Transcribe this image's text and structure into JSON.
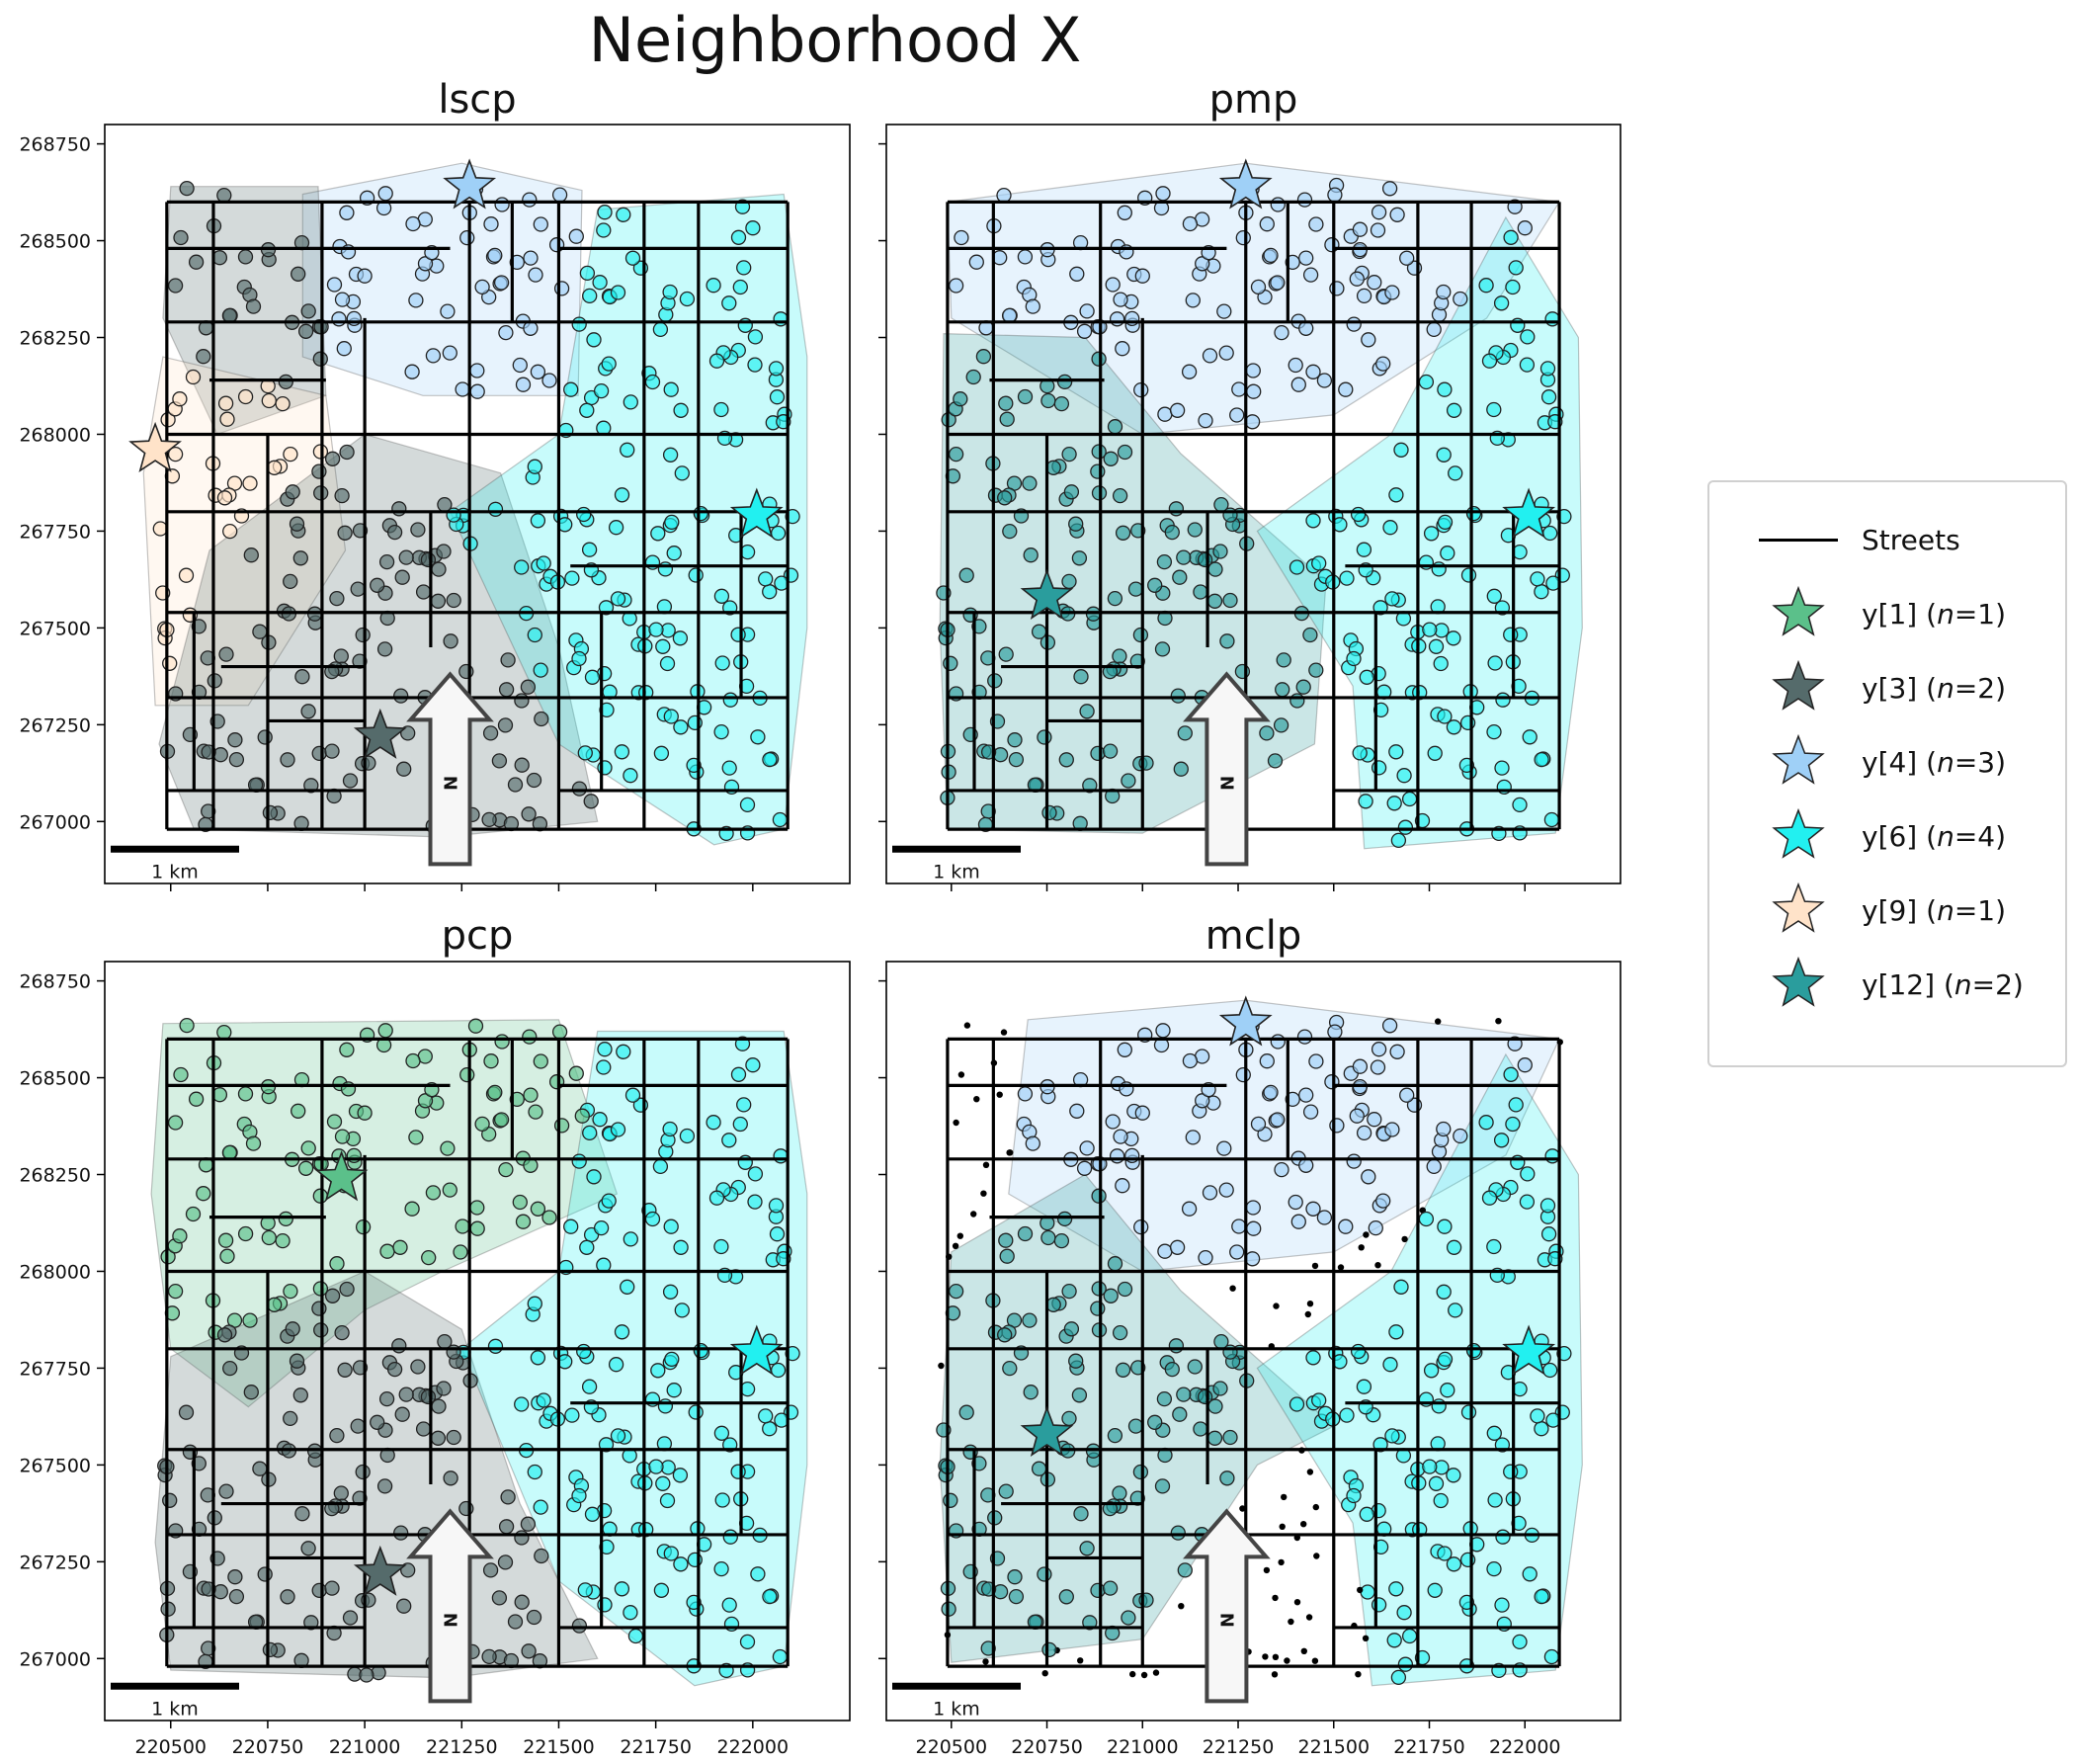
{
  "figure": {
    "title": "Neighborhood X"
  },
  "chart_data": {
    "type": "map",
    "x_ticks": [
      220500,
      220750,
      221000,
      221250,
      221500,
      221750,
      222000
    ],
    "y_ticks": [
      267000,
      267250,
      267500,
      267750,
      268000,
      268250,
      268500,
      268750
    ],
    "xlim": [
      220330,
      222250
    ],
    "ylim": [
      266840,
      268800
    ],
    "scalebar_label": "1 km",
    "north_label": "N",
    "panels": [
      {
        "name": "lscp",
        "title": "lscp"
      },
      {
        "name": "pmp",
        "title": "pmp"
      },
      {
        "name": "pcp",
        "title": "pcp"
      },
      {
        "name": "mclp",
        "title": "mclp"
      }
    ],
    "legend": {
      "placement": "right",
      "entries": [
        {
          "key": "streets",
          "label": "Streets",
          "color": "#000000"
        },
        {
          "key": "y1",
          "label": "y[1]",
          "n": "1",
          "color": "#5bc08a"
        },
        {
          "key": "y3",
          "label": "y[3]",
          "n": "2",
          "color": "#556b6b"
        },
        {
          "key": "y4",
          "label": "y[4]",
          "n": "3",
          "color": "#9fd0f7"
        },
        {
          "key": "y6",
          "label": "y[6]",
          "n": "4",
          "color": "#22f0f0"
        },
        {
          "key": "y9",
          "label": "y[9]",
          "n": "1",
          "color": "#ffe3c9"
        },
        {
          "key": "y12",
          "label": "y[12]",
          "n": "2",
          "color": "#2a9d9d"
        }
      ]
    }
  }
}
